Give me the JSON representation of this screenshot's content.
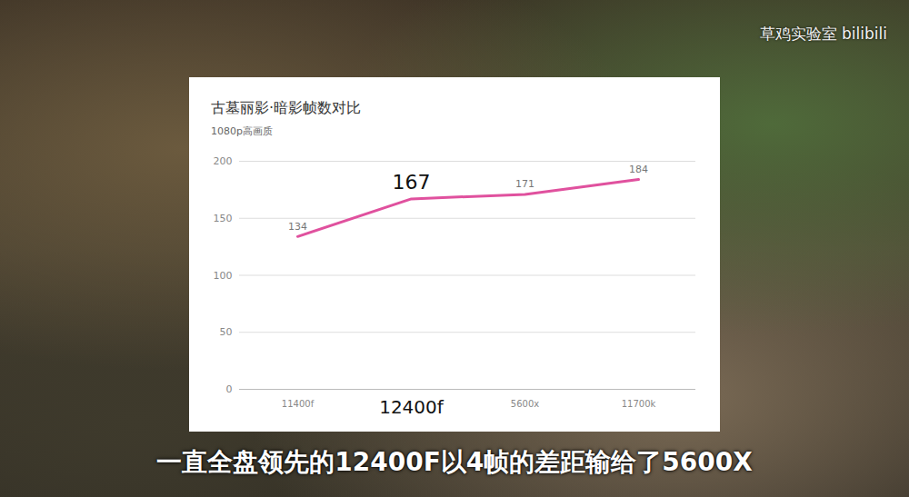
{
  "chart_data": {
    "type": "line",
    "title": "古墓丽影·暗影帧数对比",
    "subtitle": "1080p高画质",
    "categories": [
      "11400f",
      "12400f",
      "5600x",
      "11700k"
    ],
    "values": [
      134,
      167,
      171,
      184
    ],
    "color": "#e0519e",
    "ylim": [
      0,
      200
    ],
    "yticks": [
      0,
      50,
      100,
      150,
      200
    ],
    "grid": true,
    "data_labels": true
  },
  "caption": "一直全盘领先的12400F以4帧的差距输给了5600X",
  "watermark": "草鸡实验室 bilibili"
}
